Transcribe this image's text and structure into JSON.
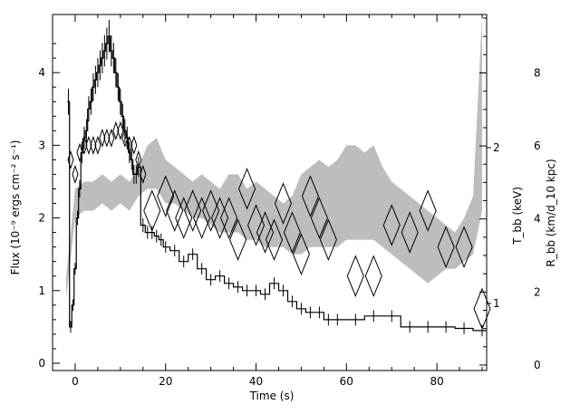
{
  "chart_data": {
    "type": "line",
    "title": "",
    "xlabel": "Time (s)",
    "ylabel_left": "Flux (10⁻⁹ ergs cm⁻² s⁻¹)",
    "ylabel_right_inner": "T_bb (keV)",
    "ylabel_right_outer": "R_bb (km/d_10 kpc)",
    "xlim": [
      -5,
      91
    ],
    "ylim_flux": [
      -0.1,
      4.8
    ],
    "ylim_R": [
      -0.15,
      9.6
    ],
    "x_ticks": [
      0,
      20,
      40,
      60,
      80
    ],
    "x_tick_labels": [
      "0",
      "20",
      "40",
      "60",
      "80"
    ],
    "y_ticks_flux": [
      0,
      1,
      2,
      3,
      4
    ],
    "y_tick_labels_flux": [
      "0",
      "1",
      "2",
      "3",
      "4"
    ],
    "y_ticks_R": [
      0,
      2,
      4,
      6,
      8
    ],
    "y_tick_labels_R": [
      "0",
      "2",
      "4",
      "6",
      "8"
    ],
    "T_ticks": [
      1,
      2
    ],
    "T_tick_labels": [
      "1",
      "2"
    ],
    "grid": false,
    "series": [
      {
        "style": "histogram-with-errorbars",
        "x": [
          -1.5,
          -1,
          -0.5,
          0,
          0.5,
          1,
          1.5,
          2,
          2.5,
          3,
          3.5,
          4,
          4.5,
          5,
          5.5,
          6,
          6.5,
          7,
          7.5,
          8,
          8.5,
          9,
          9.5,
          10,
          10.5,
          11,
          11.5,
          12,
          12.5,
          13,
          13.5,
          14,
          15,
          16,
          17,
          18,
          19,
          20,
          22,
          24,
          26,
          28,
          30,
          32,
          34,
          36,
          38,
          40,
          42,
          44,
          46,
          48,
          50,
          52,
          54,
          56,
          58,
          62,
          66,
          70,
          74,
          78,
          82,
          86,
          90
        ],
        "values": [
          3.6,
          0.5,
          0.8,
          1.3,
          2.0,
          2.4,
          2.9,
          3.1,
          3.2,
          3.5,
          3.6,
          3.8,
          3.9,
          4.0,
          4.1,
          4.2,
          4.3,
          4.4,
          4.5,
          4.3,
          4.2,
          4.0,
          3.8,
          3.6,
          3.4,
          3.2,
          3.1,
          2.9,
          2.8,
          2.6,
          2.6,
          2.7,
          1.9,
          1.8,
          1.8,
          1.75,
          1.7,
          1.6,
          1.55,
          1.4,
          1.5,
          1.3,
          1.15,
          1.2,
          1.1,
          1.05,
          1.0,
          1.0,
          0.95,
          1.1,
          1.0,
          0.85,
          0.75,
          0.7,
          0.7,
          0.6,
          0.6,
          0.6,
          0.65,
          0.65,
          0.5,
          0.5,
          0.5,
          0.48,
          0.45
        ]
      },
      {
        "style": "shaded-band",
        "x": [
          -2,
          0,
          2,
          4,
          6,
          8,
          10,
          12,
          14,
          16,
          18,
          20,
          22,
          24,
          26,
          28,
          30,
          32,
          34,
          36,
          38,
          40,
          42,
          44,
          46,
          48,
          50,
          52,
          54,
          56,
          58,
          60,
          62,
          64,
          66,
          68,
          70,
          72,
          74,
          76,
          78,
          80,
          82,
          84,
          86,
          88,
          90
        ],
        "upper": [
          1.2,
          2.4,
          2.5,
          2.5,
          2.6,
          2.5,
          2.6,
          2.5,
          2.7,
          3.0,
          3.1,
          2.8,
          2.7,
          2.6,
          2.5,
          2.6,
          2.5,
          2.4,
          2.6,
          2.6,
          2.4,
          2.5,
          2.4,
          2.3,
          2.2,
          2.3,
          2.6,
          2.7,
          2.8,
          2.7,
          2.8,
          3.0,
          3.0,
          2.9,
          3.0,
          2.7,
          2.5,
          2.4,
          2.3,
          2.2,
          2.1,
          2.0,
          1.9,
          1.8,
          2.0,
          2.3,
          4.8
        ],
        "lower": [
          0.9,
          2.0,
          2.1,
          2.1,
          2.2,
          2.1,
          2.2,
          2.1,
          2.3,
          2.4,
          2.4,
          2.2,
          2.2,
          2.1,
          2.0,
          2.0,
          1.9,
          1.8,
          1.8,
          1.8,
          1.7,
          1.7,
          1.6,
          1.6,
          1.6,
          1.5,
          1.5,
          1.6,
          1.6,
          1.6,
          1.6,
          1.7,
          1.7,
          1.7,
          1.7,
          1.6,
          1.5,
          1.4,
          1.3,
          1.2,
          1.1,
          1.2,
          1.3,
          1.3,
          1.4,
          1.5,
          2.1
        ]
      },
      {
        "style": "diamonds",
        "x": [
          -1,
          0,
          1,
          2,
          3,
          4,
          5,
          6,
          7,
          8,
          9,
          10,
          11,
          12,
          13,
          14,
          15,
          17,
          20,
          22,
          24,
          26,
          28,
          30,
          32,
          34,
          36,
          38,
          40,
          42,
          44,
          46,
          48,
          50,
          52,
          54,
          56,
          62,
          66,
          70,
          74,
          78,
          82,
          86,
          90
        ],
        "values": [
          2.8,
          2.6,
          2.9,
          3.0,
          3.0,
          3.0,
          3.0,
          3.1,
          3.1,
          3.1,
          3.2,
          3.2,
          3.1,
          3.0,
          3.0,
          2.8,
          2.6,
          2.1,
          2.3,
          2.1,
          2.0,
          2.1,
          2.0,
          2.1,
          2.0,
          2.0,
          1.7,
          2.4,
          1.9,
          1.8,
          1.7,
          2.2,
          1.8,
          1.5,
          2.3,
          2.0,
          1.7,
          1.2,
          1.2,
          1.9,
          1.8,
          2.1,
          1.6,
          1.6,
          0.75
        ]
      }
    ]
  }
}
